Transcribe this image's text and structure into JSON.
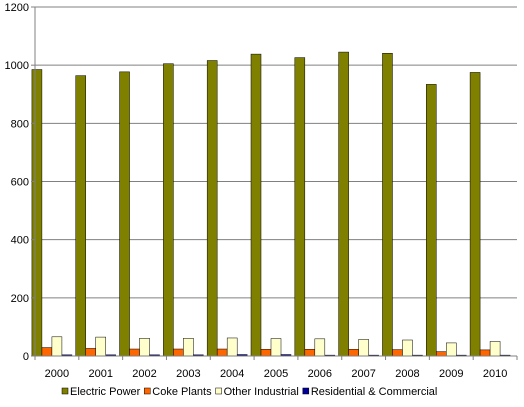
{
  "chart_data": {
    "type": "bar",
    "title": "",
    "xlabel": "",
    "ylabel": "",
    "categories": [
      "2000",
      "2001",
      "2002",
      "2003",
      "2004",
      "2005",
      "2006",
      "2007",
      "2008",
      "2009",
      "2010"
    ],
    "ylim": [
      0,
      1200
    ],
    "yticks": [
      0,
      200,
      400,
      600,
      800,
      1000,
      1200
    ],
    "grid": "horizontal",
    "legend_position": "bottom",
    "series": [
      {
        "name": "Electric Power",
        "color": "#808000",
        "values": [
          985,
          964,
          977,
          1005,
          1016,
          1038,
          1026,
          1045,
          1041,
          934,
          975
        ]
      },
      {
        "name": "Coke Plants",
        "color": "#ff6600",
        "values": [
          29,
          26,
          24,
          24,
          24,
          23,
          23,
          23,
          22,
          15,
          21
        ]
      },
      {
        "name": "Other Industrial",
        "color": "#ffffcc",
        "values": [
          66,
          65,
          61,
          61,
          62,
          60,
          59,
          57,
          55,
          45,
          50
        ]
      },
      {
        "name": "Residential & Commercial",
        "color": "#000099",
        "values": [
          4,
          4,
          4,
          4,
          5,
          5,
          3,
          3,
          3,
          3,
          3
        ]
      }
    ]
  }
}
